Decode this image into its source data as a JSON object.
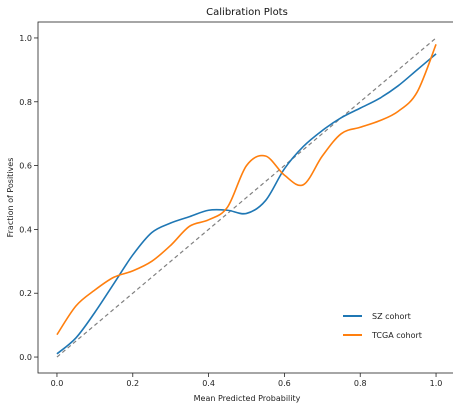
{
  "chart_data": {
    "type": "line",
    "title": "Calibration Plots",
    "xlabel": "Mean Predicted Probability",
    "ylabel": "Fraction of Positives",
    "xlim": [
      -0.05,
      1.05
    ],
    "ylim": [
      -0.05,
      1.05
    ],
    "x_ticks": [
      "0.0",
      "0.2",
      "0.4",
      "0.6",
      "0.8",
      "1.0"
    ],
    "y_ticks": [
      "0.0",
      "0.2",
      "0.4",
      "0.6",
      "0.8",
      "1.0"
    ],
    "grid": false,
    "legend_position": "lower-right",
    "reference_line": {
      "style": "dashed",
      "color": "#808080",
      "x": [
        0.0,
        1.0
      ],
      "y": [
        0.0,
        1.0
      ]
    },
    "series": [
      {
        "name": "SZ cohort",
        "color": "#1f77b4",
        "x": [
          0.0,
          0.05,
          0.1,
          0.15,
          0.2,
          0.25,
          0.3,
          0.35,
          0.4,
          0.45,
          0.5,
          0.55,
          0.6,
          0.65,
          0.7,
          0.75,
          0.8,
          0.85,
          0.9,
          0.95,
          1.0
        ],
        "y": [
          0.01,
          0.06,
          0.14,
          0.23,
          0.32,
          0.39,
          0.42,
          0.44,
          0.46,
          0.46,
          0.45,
          0.49,
          0.59,
          0.66,
          0.71,
          0.75,
          0.78,
          0.81,
          0.85,
          0.9,
          0.95
        ]
      },
      {
        "name": "TCGA cohort",
        "color": "#ff7f0e",
        "x": [
          0.0,
          0.05,
          0.1,
          0.15,
          0.2,
          0.25,
          0.3,
          0.35,
          0.4,
          0.45,
          0.5,
          0.55,
          0.6,
          0.65,
          0.7,
          0.75,
          0.8,
          0.85,
          0.9,
          0.95,
          1.0
        ],
        "y": [
          0.07,
          0.16,
          0.21,
          0.25,
          0.27,
          0.3,
          0.35,
          0.41,
          0.43,
          0.47,
          0.6,
          0.63,
          0.57,
          0.54,
          0.63,
          0.7,
          0.72,
          0.74,
          0.77,
          0.83,
          0.98
        ]
      }
    ]
  }
}
